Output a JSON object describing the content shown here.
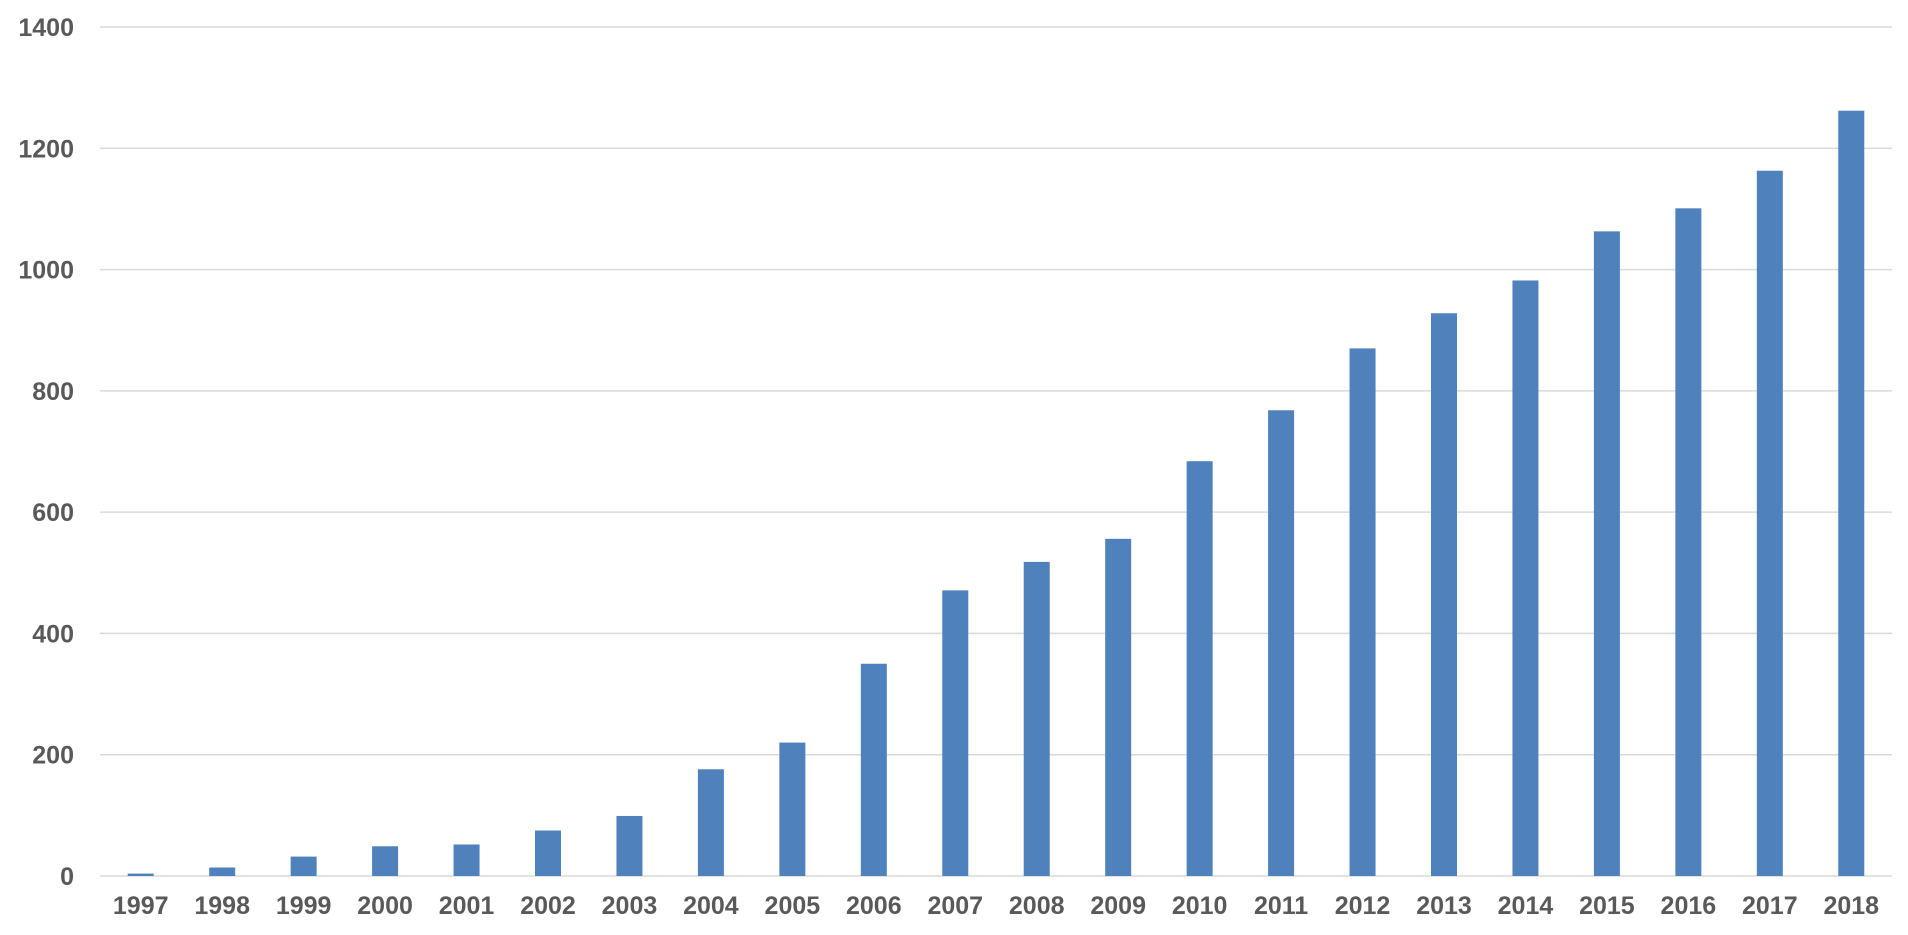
{
  "chart_data": {
    "type": "bar",
    "categories": [
      "1997",
      "1998",
      "1999",
      "2000",
      "2001",
      "2002",
      "2003",
      "2004",
      "2005",
      "2006",
      "2007",
      "2008",
      "2009",
      "2010",
      "2011",
      "2012",
      "2013",
      "2014",
      "2015",
      "2016",
      "2017",
      "2018"
    ],
    "values": [
      4,
      14,
      32,
      49,
      52,
      75,
      99,
      176,
      220,
      350,
      471,
      518,
      556,
      684,
      768,
      870,
      928,
      982,
      1063,
      1101,
      1163,
      1262
    ],
    "title": "",
    "xlabel": "",
    "ylabel": "",
    "ylim": [
      0,
      1400
    ],
    "yticks": [
      "0",
      "200",
      "400",
      "600",
      "800",
      "1000",
      "1200",
      "1400"
    ],
    "grid": true,
    "legend": "none",
    "bar_color": "#4f81bd"
  }
}
